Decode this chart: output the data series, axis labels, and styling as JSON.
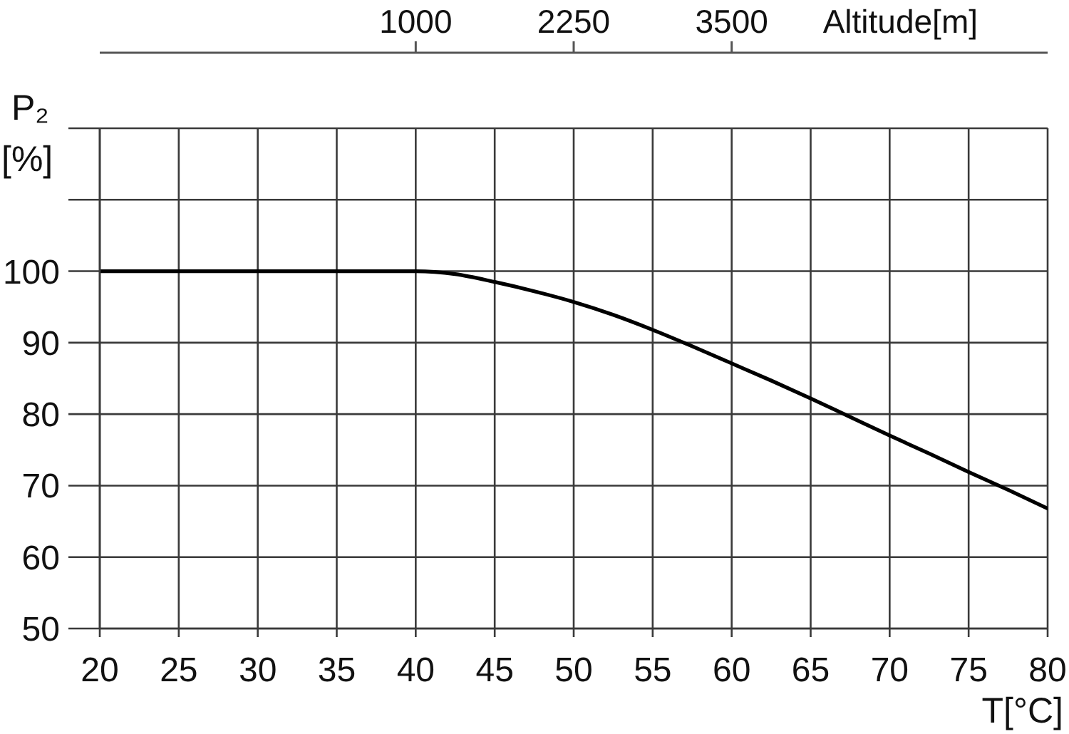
{
  "chart_data": {
    "type": "line",
    "xlabel": "T[°C]",
    "ylabel": "P₂ [%]",
    "x2label": "Altitude[m]",
    "x": [
      20,
      30,
      40,
      42.5,
      45,
      47.5,
      50,
      52.5,
      55,
      57.5,
      60,
      62.5,
      65,
      67.5,
      70,
      72.5,
      75,
      77.5,
      80
    ],
    "series": [
      {
        "color": "#000000",
        "values": [
          100,
          100,
          100,
          99.6,
          98.5,
          97.2,
          95.7,
          93.9,
          91.8,
          89.5,
          87.1,
          84.7,
          82.2,
          79.6,
          77.0,
          74.5,
          71.9,
          69.4,
          66.8
        ]
      }
    ],
    "xlim": [
      20,
      80
    ],
    "xticks": [
      20,
      25,
      30,
      35,
      40,
      45,
      50,
      55,
      60,
      65,
      70,
      75,
      80
    ],
    "ylim": [
      50,
      120
    ],
    "yticks": [
      50,
      60,
      70,
      80,
      90,
      100,
      {
        "value": 110,
        "label": null
      },
      {
        "value": 120,
        "label": null
      }
    ],
    "x2lim": [
      -1500,
      6000
    ],
    "x2ticks": [
      1000,
      2250,
      3500
    ],
    "grid": true,
    "line_style": "solid"
  }
}
